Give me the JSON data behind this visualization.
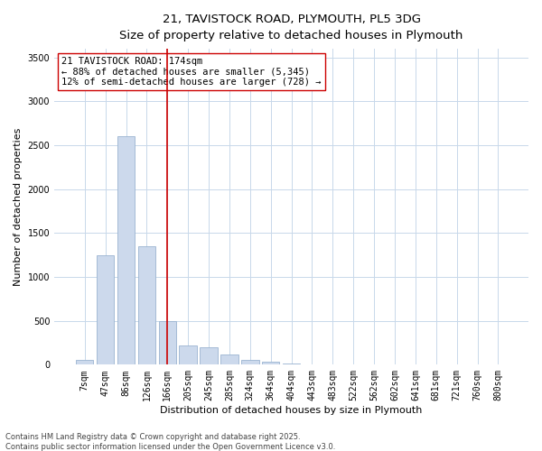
{
  "title_line1": "21, TAVISTOCK ROAD, PLYMOUTH, PL5 3DG",
  "title_line2": "Size of property relative to detached houses in Plymouth",
  "xlabel": "Distribution of detached houses by size in Plymouth",
  "ylabel": "Number of detached properties",
  "categories": [
    "7sqm",
    "47sqm",
    "86sqm",
    "126sqm",
    "166sqm",
    "205sqm",
    "245sqm",
    "285sqm",
    "324sqm",
    "364sqm",
    "404sqm",
    "443sqm",
    "483sqm",
    "522sqm",
    "562sqm",
    "602sqm",
    "641sqm",
    "681sqm",
    "721sqm",
    "760sqm",
    "800sqm"
  ],
  "values": [
    50,
    1250,
    2600,
    1350,
    500,
    215,
    200,
    120,
    55,
    30,
    10,
    5,
    3,
    1,
    0,
    0,
    0,
    0,
    0,
    0,
    0
  ],
  "bar_color": "#ccd9ec",
  "bar_edge_color": "#9ab3d0",
  "vline_color": "#cc0000",
  "annotation_text": "21 TAVISTOCK ROAD: 174sqm\n← 88% of detached houses are smaller (5,345)\n12% of semi-detached houses are larger (728) →",
  "annotation_box_color": "#ffffff",
  "annotation_box_edge": "#cc0000",
  "ylim": [
    0,
    3600
  ],
  "yticks": [
    0,
    500,
    1000,
    1500,
    2000,
    2500,
    3000,
    3500
  ],
  "background_color": "#ffffff",
  "grid_color": "#c8d8ea",
  "footnote1": "Contains HM Land Registry data © Crown copyright and database right 2025.",
  "footnote2": "Contains public sector information licensed under the Open Government Licence v3.0.",
  "title_fontsize": 9.5,
  "axis_label_fontsize": 8,
  "tick_fontsize": 7,
  "annotation_fontsize": 7.5,
  "footnote_fontsize": 6
}
